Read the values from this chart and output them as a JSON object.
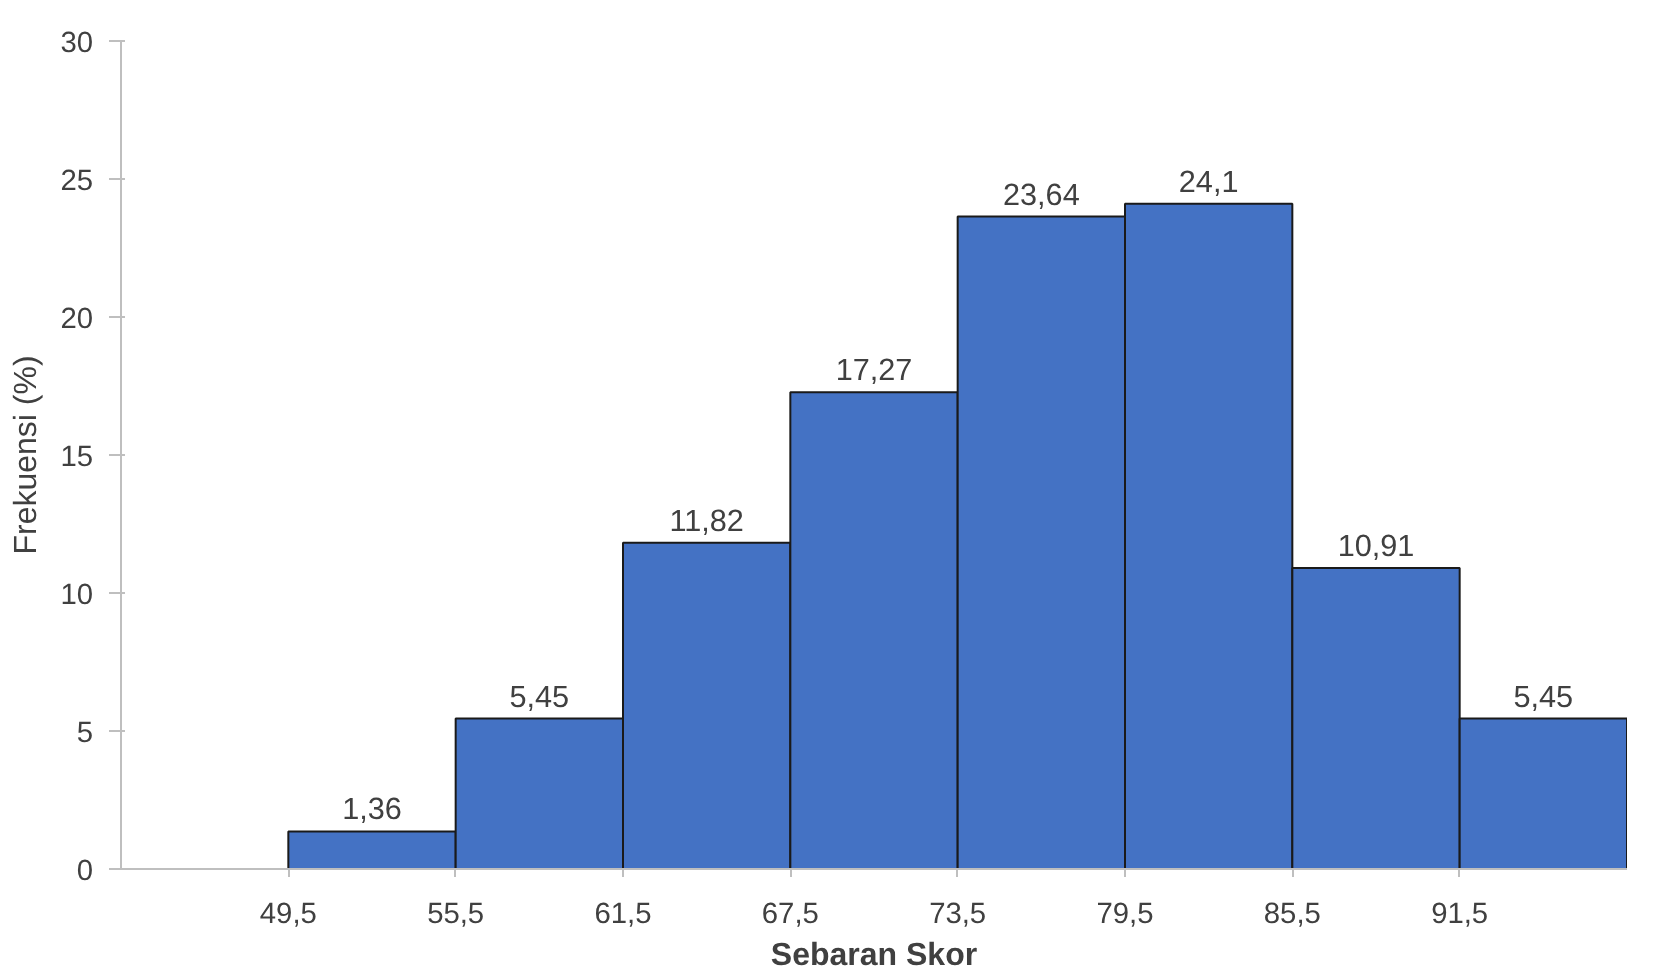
{
  "chart_data": {
    "type": "histogram",
    "xlabel": "Sebaran Skor",
    "ylabel": "Frekuensi (%)",
    "bins": [
      49.5,
      55.5,
      61.5,
      67.5,
      73.5,
      79.5,
      85.5,
      91.5,
      97.5
    ],
    "values": [
      1.36,
      5.45,
      11.82,
      17.27,
      23.64,
      24.1,
      10.91,
      5.45
    ],
    "value_labels": [
      "1,36",
      "5,45",
      "11,82",
      "17,27",
      "23,64",
      "24,1",
      "10,91",
      "5,45"
    ],
    "color": "#4472c4",
    "xlim": [
      43.5,
      97.5
    ],
    "xticks": [
      {
        "value": 49.5,
        "label": "49,5"
      },
      {
        "value": 55.5,
        "label": "55,5"
      },
      {
        "value": 61.5,
        "label": "61,5"
      },
      {
        "value": 67.5,
        "label": "67,5"
      },
      {
        "value": 73.5,
        "label": "73,5"
      },
      {
        "value": 79.5,
        "label": "79,5"
      },
      {
        "value": 85.5,
        "label": "85,5"
      },
      {
        "value": 91.5,
        "label": "91,5"
      }
    ],
    "ylim": [
      0,
      30
    ],
    "yticks": [
      0,
      5,
      10,
      15,
      20,
      25,
      30
    ],
    "grid": false
  }
}
